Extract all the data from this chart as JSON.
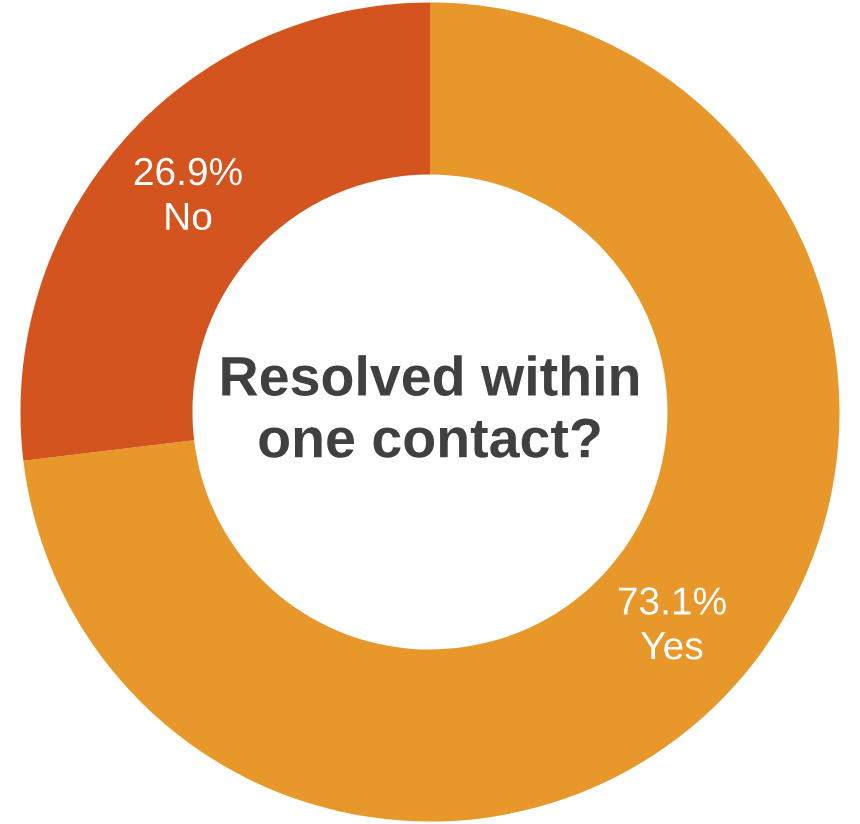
{
  "chart_data": {
    "type": "donut",
    "title": "Resolved within one contact?",
    "categories": [
      "Yes",
      "No"
    ],
    "values": [
      73.1,
      26.9
    ],
    "colors": [
      "#e8972b",
      "#d4541f"
    ],
    "value_labels": [
      "73.1%",
      "26.9%"
    ]
  }
}
